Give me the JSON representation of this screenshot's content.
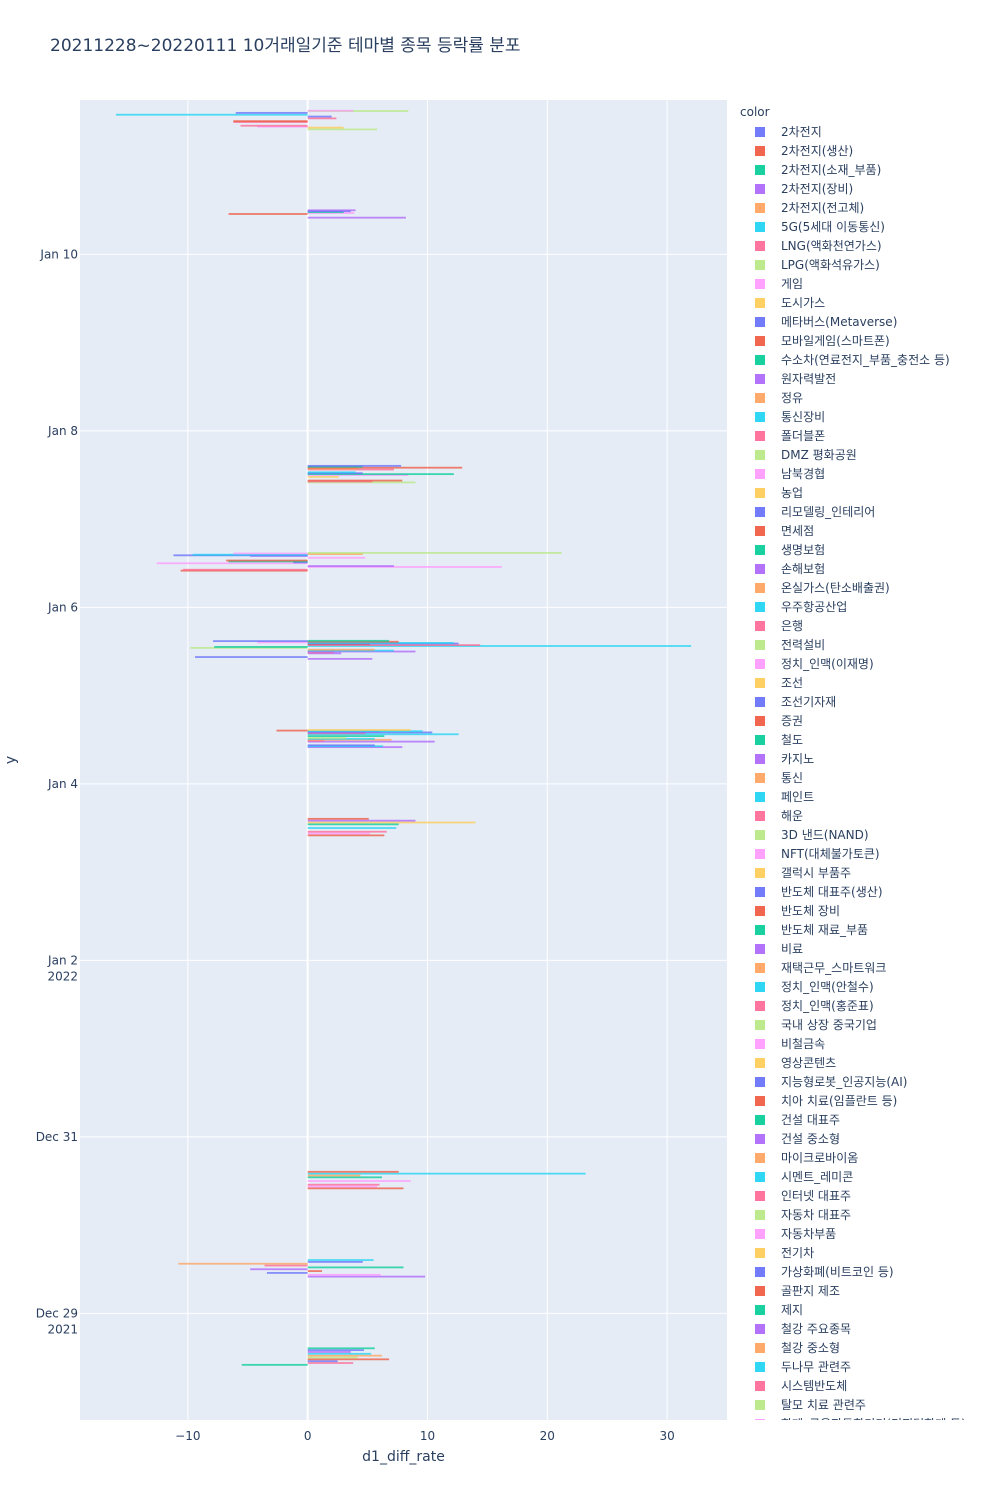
{
  "title": "20211228~20220111 10거래일기준 테마별 종목 등락률 분포",
  "legend": {
    "title": "color",
    "items": [
      {
        "label": "2차전지",
        "color": "#636efa"
      },
      {
        "label": "2차전지(생산)",
        "color": "#EF553B"
      },
      {
        "label": "2차전지(소재_부품)",
        "color": "#00cc96"
      },
      {
        "label": "2차전지(장비)",
        "color": "#ab63fa"
      },
      {
        "label": "2차전지(전고체)",
        "color": "#FFA15A"
      },
      {
        "label": "5G(5세대 이동통신)",
        "color": "#19d3f3"
      },
      {
        "label": "LNG(액화천연가스)",
        "color": "#FF6692"
      },
      {
        "label": "LPG(액화석유가스)",
        "color": "#B6E880"
      },
      {
        "label": "게임",
        "color": "#FF97FF"
      },
      {
        "label": "도시가스",
        "color": "#FECB52"
      },
      {
        "label": "메타버스(Metaverse)",
        "color": "#636efa"
      },
      {
        "label": "모바일게임(스마트폰)",
        "color": "#EF553B"
      },
      {
        "label": "수소차(연료전지_부품_충전소 등)",
        "color": "#00cc96"
      },
      {
        "label": "원자력발전",
        "color": "#ab63fa"
      },
      {
        "label": "정유",
        "color": "#FFA15A"
      },
      {
        "label": "통신장비",
        "color": "#19d3f3"
      },
      {
        "label": "폴더블폰",
        "color": "#FF6692"
      },
      {
        "label": "DMZ 평화공원",
        "color": "#B6E880"
      },
      {
        "label": "남북경협",
        "color": "#FF97FF"
      },
      {
        "label": "농업",
        "color": "#FECB52"
      },
      {
        "label": "리모델링_인테리어",
        "color": "#636efa"
      },
      {
        "label": "면세점",
        "color": "#EF553B"
      },
      {
        "label": "생명보험",
        "color": "#00cc96"
      },
      {
        "label": "손해보험",
        "color": "#ab63fa"
      },
      {
        "label": "온실가스(탄소배출권)",
        "color": "#FFA15A"
      },
      {
        "label": "우주항공산업",
        "color": "#19d3f3"
      },
      {
        "label": "은행",
        "color": "#FF6692"
      },
      {
        "label": "전력설비",
        "color": "#B6E880"
      },
      {
        "label": "정치_인맥(이재명)",
        "color": "#FF97FF"
      },
      {
        "label": "조선",
        "color": "#FECB52"
      },
      {
        "label": "조선기자재",
        "color": "#636efa"
      },
      {
        "label": "증권",
        "color": "#EF553B"
      },
      {
        "label": "철도",
        "color": "#00cc96"
      },
      {
        "label": "카지노",
        "color": "#ab63fa"
      },
      {
        "label": "통신",
        "color": "#FFA15A"
      },
      {
        "label": "페인트",
        "color": "#19d3f3"
      },
      {
        "label": "해운",
        "color": "#FF6692"
      },
      {
        "label": "3D 낸드(NAND)",
        "color": "#B6E880"
      },
      {
        "label": "NFT(대체불가토큰)",
        "color": "#FF97FF"
      },
      {
        "label": "갤럭시 부품주",
        "color": "#FECB52"
      },
      {
        "label": "반도체 대표주(생산)",
        "color": "#636efa"
      },
      {
        "label": "반도체 장비",
        "color": "#EF553B"
      },
      {
        "label": "반도체 재료_부품",
        "color": "#00cc96"
      },
      {
        "label": "비료",
        "color": "#ab63fa"
      },
      {
        "label": "재택근무_스마트워크",
        "color": "#FFA15A"
      },
      {
        "label": "정치_인맥(안철수)",
        "color": "#19d3f3"
      },
      {
        "label": "정치_인맥(홍준표)",
        "color": "#FF6692"
      },
      {
        "label": "국내 상장 중국기업",
        "color": "#B6E880"
      },
      {
        "label": "비철금속",
        "color": "#FF97FF"
      },
      {
        "label": "영상콘텐츠",
        "color": "#FECB52"
      },
      {
        "label": "지능형로봇_인공지능(AI)",
        "color": "#636efa"
      },
      {
        "label": "치아 치료(임플란트 등)",
        "color": "#EF553B"
      },
      {
        "label": "건설 대표주",
        "color": "#00cc96"
      },
      {
        "label": "건설 중소형",
        "color": "#ab63fa"
      },
      {
        "label": "마이크로바이옴",
        "color": "#FFA15A"
      },
      {
        "label": "시멘트_레미콘",
        "color": "#19d3f3"
      },
      {
        "label": "인터넷 대표주",
        "color": "#FF6692"
      },
      {
        "label": "자동차 대표주",
        "color": "#B6E880"
      },
      {
        "label": "자동차부품",
        "color": "#FF97FF"
      },
      {
        "label": "전기차",
        "color": "#FECB52"
      },
      {
        "label": "가상화폐(비트코인 등)",
        "color": "#636efa"
      },
      {
        "label": "골판지 제조",
        "color": "#EF553B"
      },
      {
        "label": "제지",
        "color": "#00cc96"
      },
      {
        "label": "철강 주요종목",
        "color": "#ab63fa"
      },
      {
        "label": "철강 중소형",
        "color": "#FFA15A"
      },
      {
        "label": "두나무 관련주",
        "color": "#19d3f3"
      },
      {
        "label": "시스템반도체",
        "color": "#FF6692"
      },
      {
        "label": "탈모 치료 관련주",
        "color": "#B6E880"
      },
      {
        "label": "화폐_금융자동화기기(디지털화폐 등)",
        "color": "#FF97FF"
      }
    ]
  },
  "chart_data": {
    "type": "bar",
    "orientation": "h",
    "title": "20211228~20220111 10거래일기준 테마별 종목 등락률 분포",
    "xlabel": "d1_diff_rate",
    "ylabel": "y",
    "xlim": [
      -19,
      35
    ],
    "ylim": [
      "2021-12-27 19:00",
      "2022-01-11 18:00"
    ],
    "x_ticks": [
      -10,
      0,
      10,
      20,
      30
    ],
    "y_ticks": [
      {
        "date": "2021-12-29",
        "label": "Dec 29",
        "sub": "2021"
      },
      {
        "date": "2021-12-31",
        "label": "Dec 31",
        "sub": ""
      },
      {
        "date": "2022-01-02",
        "label": "Jan 2",
        "sub": "2022"
      },
      {
        "date": "2022-01-04",
        "label": "Jan 4",
        "sub": ""
      },
      {
        "date": "2022-01-06",
        "label": "Jan 6",
        "sub": ""
      },
      {
        "date": "2022-01-08",
        "label": "Jan 8",
        "sub": ""
      },
      {
        "date": "2022-01-10",
        "label": "Jan 10",
        "sub": ""
      }
    ],
    "grid": true,
    "legend_position": "right",
    "trading_days": [
      "2021-12-28",
      "2021-12-29",
      "2021-12-30",
      "2022-01-03",
      "2022-01-04",
      "2022-01-05",
      "2022-01-06",
      "2022-01-07",
      "2022-01-10",
      "2022-01-11"
    ],
    "bars": [
      {
        "date": "2021-12-28",
        "minute": 600,
        "x": -5.5,
        "color": "#00cc96"
      },
      {
        "date": "2021-12-28",
        "minute": 630,
        "x": 3.8,
        "color": "#FF6692"
      },
      {
        "date": "2021-12-28",
        "minute": 660,
        "x": 2.5,
        "color": "#636efa"
      },
      {
        "date": "2021-12-28",
        "minute": 690,
        "x": 6.8,
        "color": "#EF553B"
      },
      {
        "date": "2021-12-28",
        "minute": 720,
        "x": 4.2,
        "color": "#B6E880"
      },
      {
        "date": "2021-12-28",
        "minute": 750,
        "x": 6.2,
        "color": "#FFA15A"
      },
      {
        "date": "2021-12-28",
        "minute": 780,
        "x": 5.3,
        "color": "#19d3f3"
      },
      {
        "date": "2021-12-28",
        "minute": 810,
        "x": 3.6,
        "color": "#ab63fa"
      },
      {
        "date": "2021-12-28",
        "minute": 840,
        "x": 4.7,
        "color": "#636efa"
      },
      {
        "date": "2021-12-28",
        "minute": 870,
        "x": 5.6,
        "color": "#00cc96"
      },
      {
        "date": "2021-12-29",
        "minute": 600,
        "x": 9.8,
        "color": "#ab63fa"
      },
      {
        "date": "2021-12-29",
        "minute": 630,
        "x": 6.1,
        "color": "#FF97FF"
      },
      {
        "date": "2021-12-29",
        "minute": 660,
        "x": -3.4,
        "color": "#636efa"
      },
      {
        "date": "2021-12-29",
        "minute": 690,
        "x": 1.2,
        "color": "#EF553B"
      },
      {
        "date": "2021-12-29",
        "minute": 720,
        "x": -4.8,
        "color": "#ab63fa"
      },
      {
        "date": "2021-12-29",
        "minute": 750,
        "x": 8.0,
        "color": "#00cc96"
      },
      {
        "date": "2021-12-29",
        "minute": 780,
        "x": -3.6,
        "color": "#FF6692"
      },
      {
        "date": "2021-12-29",
        "minute": 810,
        "x": -10.8,
        "color": "#FFA15A"
      },
      {
        "date": "2021-12-29",
        "minute": 840,
        "x": 4.6,
        "color": "#636efa"
      },
      {
        "date": "2021-12-29",
        "minute": 870,
        "x": 5.5,
        "color": "#19d3f3"
      },
      {
        "date": "2021-12-30",
        "minute": 600,
        "x": 8.0,
        "color": "#EF553B"
      },
      {
        "date": "2021-12-30",
        "minute": 630,
        "x": 5.8,
        "color": "#FF97FF"
      },
      {
        "date": "2021-12-30",
        "minute": 660,
        "x": 6.0,
        "color": "#FF6692"
      },
      {
        "date": "2021-12-30",
        "minute": 720,
        "x": 8.6,
        "color": "#FF97FF"
      },
      {
        "date": "2021-12-30",
        "minute": 780,
        "x": 6.2,
        "color": "#00cc96"
      },
      {
        "date": "2021-12-30",
        "minute": 810,
        "x": 4.4,
        "color": "#FFA15A"
      },
      {
        "date": "2021-12-30",
        "minute": 840,
        "x": 23.2,
        "color": "#19d3f3"
      },
      {
        "date": "2021-12-30",
        "minute": 870,
        "x": 7.6,
        "color": "#EF553B"
      },
      {
        "date": "2022-01-03",
        "minute": 600,
        "x": 6.4,
        "color": "#EF553B"
      },
      {
        "date": "2022-01-03",
        "minute": 630,
        "x": 5.2,
        "color": "#FF97FF"
      },
      {
        "date": "2022-01-03",
        "minute": 660,
        "x": 6.6,
        "color": "#FF6692"
      },
      {
        "date": "2022-01-03",
        "minute": 720,
        "x": 7.4,
        "color": "#19d3f3"
      },
      {
        "date": "2022-01-03",
        "minute": 780,
        "x": 7.6,
        "color": "#00cc96"
      },
      {
        "date": "2022-01-03",
        "minute": 810,
        "x": 14.0,
        "color": "#FECB52"
      },
      {
        "date": "2022-01-03",
        "minute": 840,
        "x": 9.0,
        "color": "#ab63fa"
      },
      {
        "date": "2022-01-03",
        "minute": 870,
        "x": 5.1,
        "color": "#EF553B"
      },
      {
        "date": "2022-01-04",
        "minute": 600,
        "x": 7.9,
        "color": "#ab63fa"
      },
      {
        "date": "2022-01-04",
        "minute": 615,
        "x": 6.3,
        "color": "#19d3f3"
      },
      {
        "date": "2022-01-04",
        "minute": 630,
        "x": 5.6,
        "color": "#636efa"
      },
      {
        "date": "2022-01-04",
        "minute": 690,
        "x": 10.6,
        "color": "#ab63fa"
      },
      {
        "date": "2022-01-04",
        "minute": 705,
        "x": 1.4,
        "color": "#FF6692"
      },
      {
        "date": "2022-01-04",
        "minute": 720,
        "x": 7.0,
        "color": "#FFA15A"
      },
      {
        "date": "2022-01-04",
        "minute": 735,
        "x": 5.6,
        "color": "#19d3f3"
      },
      {
        "date": "2022-01-04",
        "minute": 750,
        "x": 3.2,
        "color": "#B6E880"
      },
      {
        "date": "2022-01-04",
        "minute": 780,
        "x": 6.4,
        "color": "#00cc96"
      },
      {
        "date": "2022-01-04",
        "minute": 810,
        "x": 12.6,
        "color": "#19d3f3"
      },
      {
        "date": "2022-01-04",
        "minute": 825,
        "x": 4.8,
        "color": "#FF6692"
      },
      {
        "date": "2022-01-04",
        "minute": 840,
        "x": 10.4,
        "color": "#636efa"
      },
      {
        "date": "2022-01-04",
        "minute": 850,
        "x": 6.0,
        "color": "#ab63fa"
      },
      {
        "date": "2022-01-04",
        "minute": 860,
        "x": 9.6,
        "color": "#19d3f3"
      },
      {
        "date": "2022-01-04",
        "minute": 870,
        "x": -2.6,
        "color": "#EF553B"
      },
      {
        "date": "2022-01-04",
        "minute": 880,
        "x": 8.6,
        "color": "#FECB52"
      },
      {
        "date": "2022-01-05",
        "minute": 600,
        "x": 5.4,
        "color": "#ab63fa"
      },
      {
        "date": "2022-01-05",
        "minute": 630,
        "x": -9.4,
        "color": "#636efa"
      },
      {
        "date": "2022-01-05",
        "minute": 690,
        "x": 2.8,
        "color": "#ab63fa"
      },
      {
        "date": "2022-01-05",
        "minute": 705,
        "x": 2.2,
        "color": "#FF6692"
      },
      {
        "date": "2022-01-05",
        "minute": 720,
        "x": 9.0,
        "color": "#ab63fa"
      },
      {
        "date": "2022-01-05",
        "minute": 735,
        "x": 7.2,
        "color": "#19d3f3"
      },
      {
        "date": "2022-01-05",
        "minute": 750,
        "x": 5.6,
        "color": "#FFA15A"
      },
      {
        "date": "2022-01-05",
        "minute": 780,
        "x": -9.8,
        "color": "#B6E880"
      },
      {
        "date": "2022-01-05",
        "minute": 795,
        "x": -7.8,
        "color": "#00cc96"
      },
      {
        "date": "2022-01-05",
        "minute": 810,
        "x": 32.0,
        "color": "#19d3f3"
      },
      {
        "date": "2022-01-05",
        "minute": 825,
        "x": 14.4,
        "color": "#FF6692"
      },
      {
        "date": "2022-01-05",
        "minute": 840,
        "x": 5.2,
        "color": "#EF553B"
      },
      {
        "date": "2022-01-05",
        "minute": 850,
        "x": 12.6,
        "color": "#636efa"
      },
      {
        "date": "2022-01-05",
        "minute": 860,
        "x": 12.2,
        "color": "#19d3f3"
      },
      {
        "date": "2022-01-05",
        "minute": 870,
        "x": -4.2,
        "color": "#FF97FF"
      },
      {
        "date": "2022-01-05",
        "minute": 880,
        "x": 7.6,
        "color": "#EF553B"
      },
      {
        "date": "2022-01-05",
        "minute": 890,
        "x": -7.9,
        "color": "#636efa"
      },
      {
        "date": "2022-01-05",
        "minute": 895,
        "x": 6.8,
        "color": "#00cc96"
      },
      {
        "date": "2022-01-06",
        "minute": 600,
        "x": -10.6,
        "color": "#EF553B"
      },
      {
        "date": "2022-01-06",
        "minute": 615,
        "x": -10.4,
        "color": "#FF6692"
      },
      {
        "date": "2022-01-06",
        "minute": 660,
        "x": 16.2,
        "color": "#FF97FF"
      },
      {
        "date": "2022-01-06",
        "minute": 675,
        "x": 7.2,
        "color": "#ab63fa"
      },
      {
        "date": "2022-01-06",
        "minute": 720,
        "x": -12.6,
        "color": "#FF97FF"
      },
      {
        "date": "2022-01-06",
        "minute": 735,
        "x": -1.2,
        "color": "#636efa"
      },
      {
        "date": "2022-01-06",
        "minute": 750,
        "x": -6.6,
        "color": "#00cc96"
      },
      {
        "date": "2022-01-06",
        "minute": 765,
        "x": -6.8,
        "color": "#EF553B"
      },
      {
        "date": "2022-01-06",
        "minute": 810,
        "x": 4.8,
        "color": "#FF97FF"
      },
      {
        "date": "2022-01-06",
        "minute": 840,
        "x": -4.8,
        "color": "#ab63fa"
      },
      {
        "date": "2022-01-06",
        "minute": 850,
        "x": -11.2,
        "color": "#636efa"
      },
      {
        "date": "2022-01-06",
        "minute": 860,
        "x": -9.6,
        "color": "#19d3f3"
      },
      {
        "date": "2022-01-06",
        "minute": 870,
        "x": 4.6,
        "color": "#FFA15A"
      },
      {
        "date": "2022-01-06",
        "minute": 880,
        "x": -6.2,
        "color": "#FF97FF"
      },
      {
        "date": "2022-01-06",
        "minute": 890,
        "x": 21.2,
        "color": "#B6E880"
      },
      {
        "date": "2022-01-07",
        "minute": 600,
        "x": 9.0,
        "color": "#B6E880"
      },
      {
        "date": "2022-01-07",
        "minute": 615,
        "x": 5.4,
        "color": "#FF6692"
      },
      {
        "date": "2022-01-07",
        "minute": 630,
        "x": 7.9,
        "color": "#EF553B"
      },
      {
        "date": "2022-01-07",
        "minute": 690,
        "x": 2.6,
        "color": "#FECB52"
      },
      {
        "date": "2022-01-07",
        "minute": 720,
        "x": 8.4,
        "color": "#FF97FF"
      },
      {
        "date": "2022-01-07",
        "minute": 735,
        "x": 12.2,
        "color": "#00cc96"
      },
      {
        "date": "2022-01-07",
        "minute": 750,
        "x": 4.6,
        "color": "#636efa"
      },
      {
        "date": "2022-01-07",
        "minute": 765,
        "x": 4.0,
        "color": "#19d3f3"
      },
      {
        "date": "2022-01-07",
        "minute": 810,
        "x": 7.2,
        "color": "#FF6692"
      },
      {
        "date": "2022-01-07",
        "minute": 825,
        "x": 4.2,
        "color": "#FFA15A"
      },
      {
        "date": "2022-01-07",
        "minute": 840,
        "x": 12.9,
        "color": "#EF553B"
      },
      {
        "date": "2022-01-07",
        "minute": 855,
        "x": 4.6,
        "color": "#00cc96"
      },
      {
        "date": "2022-01-07",
        "minute": 870,
        "x": 7.8,
        "color": "#636efa"
      },
      {
        "date": "2022-01-10",
        "minute": 600,
        "x": 8.2,
        "color": "#ab63fa"
      },
      {
        "date": "2022-01-10",
        "minute": 660,
        "x": -6.6,
        "color": "#EF553B"
      },
      {
        "date": "2022-01-10",
        "minute": 675,
        "x": 3.9,
        "color": "#FF97FF"
      },
      {
        "date": "2022-01-10",
        "minute": 690,
        "x": 3.0,
        "color": "#00cc96"
      },
      {
        "date": "2022-01-10",
        "minute": 705,
        "x": 3.6,
        "color": "#636efa"
      },
      {
        "date": "2022-01-10",
        "minute": 720,
        "x": 4.0,
        "color": "#ab63fa"
      },
      {
        "date": "2022-01-11",
        "minute": 600,
        "x": 5.8,
        "color": "#B6E880"
      },
      {
        "date": "2022-01-11",
        "minute": 630,
        "x": 3.0,
        "color": "#FECB52"
      },
      {
        "date": "2022-01-11",
        "minute": 645,
        "x": -4.2,
        "color": "#FF97FF"
      },
      {
        "date": "2022-01-11",
        "minute": 660,
        "x": -5.6,
        "color": "#FF6692"
      },
      {
        "date": "2022-01-11",
        "minute": 720,
        "x": -6.2,
        "color": "#FF6692"
      },
      {
        "date": "2022-01-11",
        "minute": 735,
        "x": -6.2,
        "color": "#EF553B"
      },
      {
        "date": "2022-01-11",
        "minute": 780,
        "x": 2.4,
        "color": "#FF6692"
      },
      {
        "date": "2022-01-11",
        "minute": 810,
        "x": 2.0,
        "color": "#636efa"
      },
      {
        "date": "2022-01-11",
        "minute": 840,
        "x": -16.0,
        "color": "#19d3f3"
      },
      {
        "date": "2022-01-11",
        "minute": 870,
        "x": -6.0,
        "color": "#636efa"
      },
      {
        "date": "2022-01-11",
        "minute": 900,
        "x": 8.4,
        "color": "#B6E880"
      },
      {
        "date": "2022-01-11",
        "minute": 905,
        "x": 3.8,
        "color": "#FF97FF"
      }
    ]
  }
}
